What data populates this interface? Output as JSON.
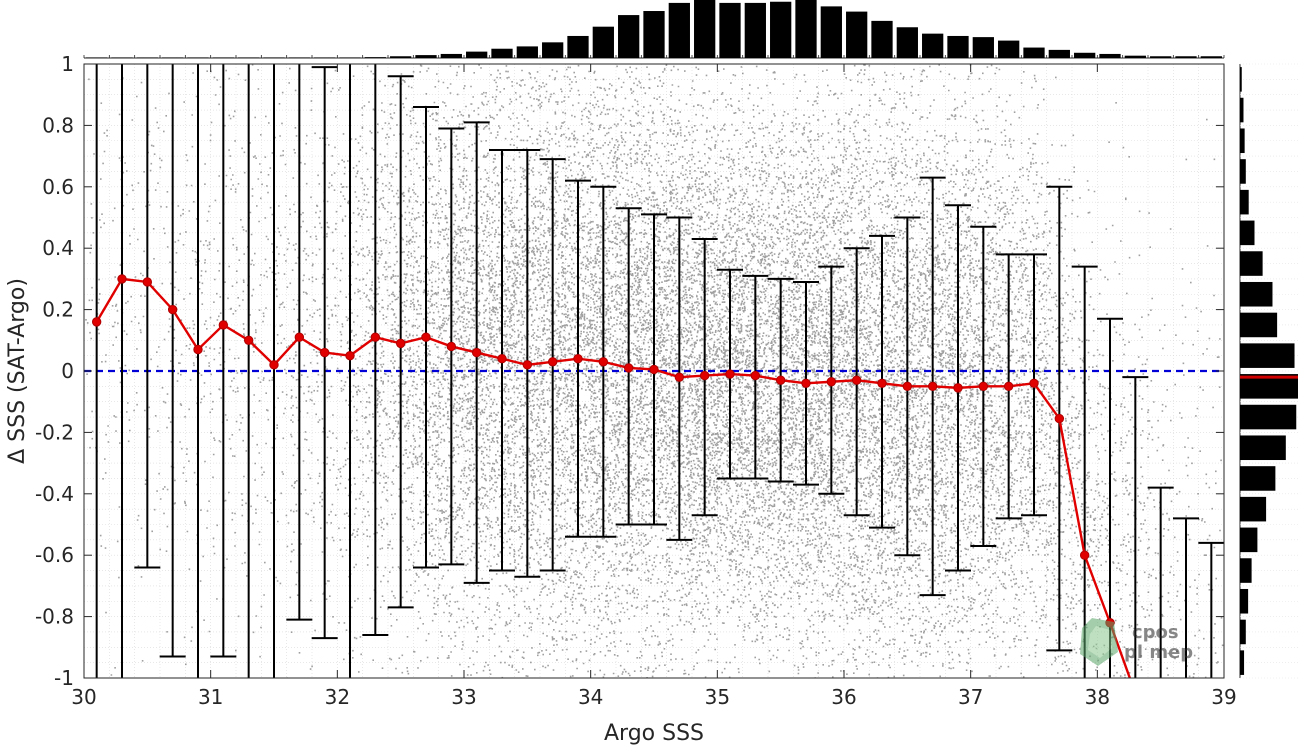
{
  "chart_data": {
    "type": "scatter",
    "xlabel": "Argo SSS",
    "ylabel": "Δ SSS (SAT-Argo)",
    "xlim": [
      30,
      39
    ],
    "ylim": [
      -1,
      1
    ],
    "xticks": [
      30,
      31,
      32,
      33,
      34,
      35,
      36,
      37,
      38,
      39
    ],
    "yticks": [
      -1,
      -0.8,
      -0.6,
      -0.4,
      -0.2,
      0,
      0.2,
      0.4,
      0.6,
      0.8,
      1
    ],
    "xtick_labels": [
      "30",
      "31",
      "32",
      "33",
      "34",
      "35",
      "36",
      "37",
      "38",
      "39"
    ],
    "ytick_labels": [
      "-1",
      "-0.8",
      "-0.6",
      "-0.4",
      "-0.2",
      "0",
      "0.2",
      "0.4",
      "0.6",
      "0.8",
      "1"
    ],
    "grid": true,
    "reference_line": {
      "y": 0,
      "style": "dashed",
      "color": "#0000d6"
    },
    "colors": {
      "scatter": "#808080",
      "mean_line": "#e00000",
      "error_bars": "#000000",
      "histograms": "#000000",
      "hist_median": "#d00000"
    },
    "mean_line": {
      "x": [
        30.1,
        30.3,
        30.5,
        30.7,
        30.9,
        31.1,
        31.3,
        31.5,
        31.7,
        31.9,
        32.1,
        32.3,
        32.5,
        32.7,
        32.9,
        33.1,
        33.3,
        33.5,
        33.7,
        33.9,
        34.1,
        34.3,
        34.5,
        34.7,
        34.9,
        35.1,
        35.3,
        35.5,
        35.7,
        35.9,
        36.1,
        36.3,
        36.5,
        36.7,
        36.9,
        37.1,
        37.3,
        37.5,
        37.7,
        37.9,
        38.1
      ],
      "y": [
        0.16,
        0.3,
        0.29,
        0.2,
        0.07,
        0.15,
        0.1,
        0.02,
        0.11,
        0.06,
        0.05,
        0.11,
        0.09,
        0.11,
        0.08,
        0.06,
        0.04,
        0.02,
        0.03,
        0.04,
        0.03,
        0.01,
        0.005,
        -0.02,
        -0.015,
        -0.01,
        -0.015,
        -0.03,
        -0.04,
        -0.035,
        -0.03,
        -0.04,
        -0.05,
        -0.05,
        -0.055,
        -0.05,
        -0.05,
        -0.04,
        -0.155,
        -0.6,
        -0.82
      ],
      "extension": {
        "x": [
          38.1,
          38.3
        ],
        "y": [
          -0.82,
          -1.05
        ]
      }
    },
    "error_bars": {
      "x": [
        30.1,
        30.3,
        30.5,
        30.7,
        30.9,
        31.1,
        31.3,
        31.5,
        31.7,
        31.9,
        32.1,
        32.3,
        32.5,
        32.7,
        32.9,
        33.1,
        33.3,
        33.5,
        33.7,
        33.9,
        34.1,
        34.3,
        34.5,
        34.7,
        34.9,
        35.1,
        35.3,
        35.5,
        35.7,
        35.9,
        36.1,
        36.3,
        36.5,
        36.7,
        36.9,
        37.1,
        37.3,
        37.5,
        37.7,
        37.9,
        38.1,
        38.3,
        38.5,
        38.7,
        38.9
      ],
      "upper": [
        1.2,
        1.2,
        1.2,
        1.2,
        1.2,
        1.2,
        1.2,
        1.2,
        1.2,
        0.99,
        1.2,
        1.2,
        0.96,
        0.86,
        0.79,
        0.81,
        0.72,
        0.72,
        0.69,
        0.62,
        0.6,
        0.53,
        0.51,
        0.5,
        0.43,
        0.33,
        0.31,
        0.3,
        0.29,
        0.34,
        0.4,
        0.44,
        0.5,
        0.63,
        0.54,
        0.47,
        0.38,
        0.38,
        0.6,
        0.34,
        0.17,
        -0.02,
        -0.38,
        -0.48,
        -0.56
      ],
      "lower": [
        -1.2,
        -1.2,
        -0.64,
        -0.93,
        -1.2,
        -0.93,
        -1.2,
        -1.2,
        -0.81,
        -0.87,
        -1.2,
        -0.86,
        -0.77,
        -0.64,
        -0.63,
        -0.69,
        -0.65,
        -0.67,
        -0.65,
        -0.54,
        -0.54,
        -0.5,
        -0.5,
        -0.55,
        -0.47,
        -0.35,
        -0.35,
        -0.36,
        -0.37,
        -0.4,
        -0.47,
        -0.51,
        -0.6,
        -0.73,
        -0.65,
        -0.57,
        -0.48,
        -0.47,
        -0.91,
        -1.2,
        -1.2,
        -1.2,
        -1.2,
        -1.2,
        -1.2
      ],
      "upper_cap": [
        false,
        false,
        false,
        false,
        false,
        false,
        false,
        false,
        false,
        true,
        false,
        false,
        true,
        true,
        true,
        true,
        true,
        true,
        true,
        true,
        true,
        true,
        true,
        true,
        true,
        true,
        true,
        true,
        true,
        true,
        true,
        true,
        true,
        true,
        true,
        true,
        true,
        true,
        true,
        true,
        true,
        true,
        true,
        true,
        true
      ],
      "lower_cap": [
        false,
        false,
        true,
        true,
        false,
        true,
        false,
        false,
        true,
        true,
        false,
        true,
        true,
        true,
        true,
        true,
        true,
        true,
        true,
        true,
        true,
        true,
        true,
        true,
        true,
        true,
        true,
        true,
        true,
        true,
        true,
        true,
        true,
        true,
        true,
        true,
        true,
        true,
        true,
        false,
        false,
        false,
        false,
        false,
        false
      ]
    },
    "scatter_cloud": {
      "density_profile_by_x": [
        [
          30,
          0.05
        ],
        [
          31,
          0.1
        ],
        [
          32,
          0.18
        ],
        [
          32.5,
          0.45
        ],
        [
          33,
          0.75
        ],
        [
          34,
          0.92
        ],
        [
          35,
          1.0
        ],
        [
          36,
          0.95
        ],
        [
          37,
          0.75
        ],
        [
          37.5,
          0.5
        ],
        [
          38,
          0.22
        ],
        [
          38.5,
          0.1
        ],
        [
          39,
          0.06
        ]
      ],
      "spread_sd_by_x": [
        [
          30,
          0.5
        ],
        [
          33,
          0.5
        ],
        [
          34,
          0.55
        ],
        [
          35,
          0.42
        ],
        [
          36,
          0.5
        ],
        [
          37,
          0.48
        ],
        [
          38,
          0.45
        ],
        [
          39,
          0.5
        ]
      ],
      "center_by_x": [
        [
          30,
          0.2
        ],
        [
          32,
          0.08
        ],
        [
          34,
          0.03
        ],
        [
          36,
          -0.03
        ],
        [
          37.5,
          -0.05
        ],
        [
          38,
          -0.5
        ],
        [
          39,
          -0.7
        ]
      ]
    },
    "top_histogram": {
      "bin_centers": [
        30.1,
        30.3,
        30.5,
        30.7,
        30.9,
        31.1,
        31.3,
        31.5,
        31.7,
        31.9,
        32.1,
        32.3,
        32.5,
        32.7,
        32.9,
        33.1,
        33.3,
        33.5,
        33.7,
        33.9,
        34.1,
        34.3,
        34.5,
        34.7,
        34.9,
        35.1,
        35.3,
        35.5,
        35.7,
        35.9,
        36.1,
        36.3,
        36.5,
        36.7,
        36.9,
        37.1,
        37.3,
        37.5,
        37.7,
        37.9,
        38.1,
        38.3,
        38.5,
        38.7,
        38.9
      ],
      "relative_counts": [
        0.01,
        0.01,
        0.01,
        0.01,
        0.01,
        0.01,
        0.01,
        0.01,
        0.01,
        0.01,
        0.01,
        0.015,
        0.03,
        0.05,
        0.07,
        0.11,
        0.16,
        0.2,
        0.27,
        0.38,
        0.54,
        0.74,
        0.81,
        0.95,
        1.0,
        0.95,
        0.95,
        0.97,
        1.0,
        0.89,
        0.8,
        0.64,
        0.53,
        0.42,
        0.38,
        0.36,
        0.3,
        0.18,
        0.14,
        0.09,
        0.07,
        0.04,
        0.03,
        0.03,
        0.03
      ]
    },
    "right_histogram": {
      "bin_centers": [
        0.95,
        0.85,
        0.75,
        0.65,
        0.55,
        0.45,
        0.35,
        0.25,
        0.15,
        0.05,
        -0.05,
        -0.15,
        -0.25,
        -0.35,
        -0.45,
        -0.55,
        -0.65,
        -0.75,
        -0.85,
        -0.95
      ],
      "relative_counts": [
        0.03,
        0.06,
        0.08,
        0.1,
        0.15,
        0.25,
        0.39,
        0.56,
        0.64,
        0.94,
        1.0,
        0.97,
        0.79,
        0.61,
        0.45,
        0.3,
        0.2,
        0.14,
        0.1,
        0.07
      ],
      "median": -0.02
    }
  }
}
